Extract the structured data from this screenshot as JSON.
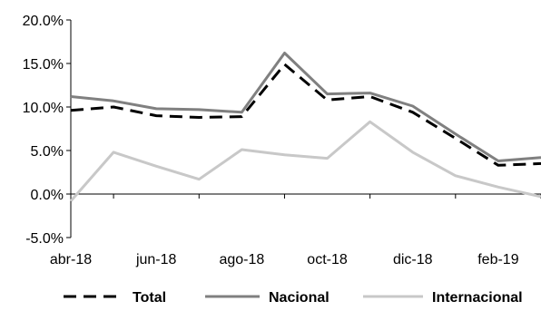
{
  "chart_data": {
    "type": "line",
    "x": [
      "abr-18",
      "may-18",
      "jun-18",
      "jul-18",
      "ago-18",
      "sep-18",
      "oct-18",
      "nov-18",
      "dic-18",
      "ene-19",
      "feb-19",
      "mar-19"
    ],
    "x_tick_labels": [
      "abr-18",
      "jun-18",
      "ago-18",
      "oct-18",
      "dic-18",
      "feb-19"
    ],
    "ylim": [
      -5.0,
      20.0
    ],
    "y_ticks": [
      -5.0,
      0.0,
      5.0,
      10.0,
      15.0,
      20.0
    ],
    "y_tick_labels": [
      "-5.0%",
      "0.0%",
      "5.0%",
      "10.0%",
      "15.0%",
      "20.0%"
    ],
    "series": [
      {
        "name": "Total",
        "color": "#000000",
        "dash": "dashed",
        "values": [
          9.6,
          10.0,
          9.0,
          8.8,
          8.9,
          14.9,
          10.8,
          11.2,
          9.4,
          6.4,
          3.3,
          3.5
        ]
      },
      {
        "name": "Nacional",
        "color": "#808080",
        "dash": "solid",
        "values": [
          11.2,
          10.7,
          9.8,
          9.7,
          9.4,
          16.2,
          11.5,
          11.6,
          10.1,
          6.9,
          3.8,
          4.2
        ]
      },
      {
        "name": "Internacional",
        "color": "#c8c8c8",
        "dash": "solid",
        "values": [
          -0.8,
          4.8,
          3.2,
          1.7,
          5.1,
          4.5,
          4.1,
          8.3,
          4.8,
          2.1,
          0.8,
          -0.3
        ]
      }
    ],
    "legend_position": "bottom",
    "grid": false
  }
}
